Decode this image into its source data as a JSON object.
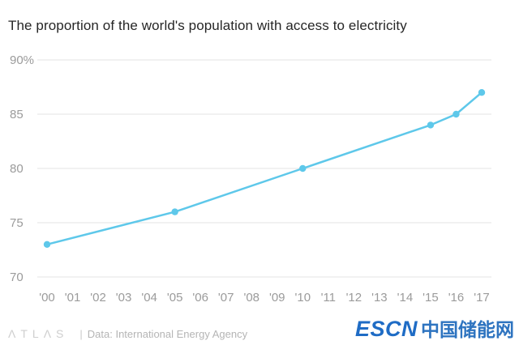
{
  "chart_data": {
    "type": "line",
    "title": "The proportion of the world's population with access to electricity",
    "xlabel": "",
    "ylabel": "",
    "x_tick_labels": [
      "'00",
      "'01",
      "'02",
      "'03",
      "'04",
      "'05",
      "'06",
      "'07",
      "'08",
      "'09",
      "'10",
      "'11",
      "'12",
      "'13",
      "'14",
      "'15",
      "'16",
      "'17"
    ],
    "ylim": [
      70,
      90
    ],
    "y_ticks": [
      90,
      85,
      80,
      75,
      70
    ],
    "y_tick_labels": [
      "90%",
      "85",
      "80",
      "75",
      "70"
    ],
    "grid": true,
    "legend": "none",
    "series": [
      {
        "name": "World population with access to electricity (%)",
        "x_index": [
          0,
          5,
          10,
          15,
          16,
          17
        ],
        "values": [
          73,
          76,
          80,
          84,
          85,
          87
        ]
      }
    ]
  },
  "footer": {
    "logo": "ΛTLΛS",
    "divider": "|",
    "source": "Data: International Energy Agency",
    "watermark_en": "ESCN",
    "watermark_cn": "中国储能网"
  },
  "colors": {
    "accent": "#5ec8ea",
    "grid": "#e3e3e3",
    "axis_text": "#9b9b9b",
    "title": "#262626",
    "watermark_blue": "#1f6cc5"
  }
}
